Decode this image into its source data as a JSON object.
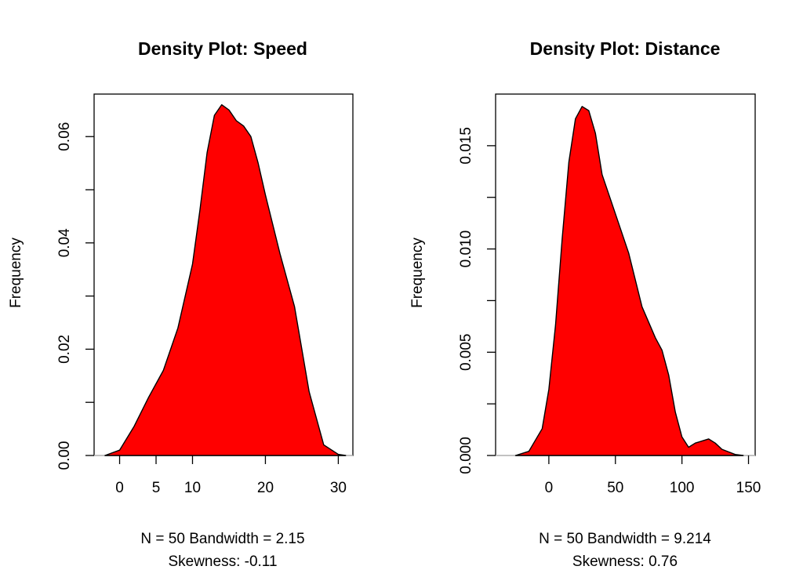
{
  "colors": {
    "fill": "#ff0000",
    "outline": "#000000",
    "background": "#ffffff"
  },
  "chart_data": [
    {
      "type": "area",
      "title": "Density Plot: Speed",
      "xlabel": "",
      "ylabel": "Frequency",
      "subtitle_line1": "N = 50   Bandwidth = 2.15",
      "subtitle_line2": "Skewness: -0.11",
      "xlim": [
        -3.5,
        32
      ],
      "ylim": [
        0,
        0.068
      ],
      "x_ticks": [
        0,
        5,
        10,
        20,
        30
      ],
      "x_tick_labels": [
        "0",
        "5",
        "10",
        "20",
        "30"
      ],
      "y_ticks": [
        0,
        0.01,
        0.02,
        0.03,
        0.04,
        0.05,
        0.06
      ],
      "y_tick_labels": [
        "0.00",
        "",
        "0.02",
        "",
        "0.04",
        "",
        "0.06"
      ],
      "grid": false,
      "legend": "none",
      "series": [
        {
          "x": [
            -2,
            0,
            2,
            4,
            6,
            8,
            10,
            11,
            12,
            13,
            14,
            15,
            16,
            17,
            18,
            19,
            20,
            22,
            24,
            26,
            28,
            30,
            31
          ],
          "values": [
            0,
            0.001,
            0.0055,
            0.011,
            0.016,
            0.024,
            0.036,
            0.046,
            0.057,
            0.064,
            0.066,
            0.065,
            0.063,
            0.062,
            0.06,
            0.055,
            0.049,
            0.038,
            0.028,
            0.012,
            0.002,
            0.0002,
            0
          ]
        }
      ]
    },
    {
      "type": "area",
      "title": "Density Plot: Distance",
      "xlabel": "",
      "ylabel": "Frequency",
      "subtitle_line1": "N = 50   Bandwidth = 9.214",
      "subtitle_line2": "Skewness: 0.76",
      "xlim": [
        -40,
        155
      ],
      "ylim": [
        0,
        0.0175
      ],
      "x_ticks": [
        0,
        50,
        100,
        150
      ],
      "x_tick_labels": [
        "0",
        "50",
        "100",
        "150"
      ],
      "y_ticks": [
        0,
        0.0025,
        0.005,
        0.0075,
        0.01,
        0.0125,
        0.015
      ],
      "y_tick_labels": [
        "0.000",
        "",
        "0.005",
        "",
        "0.010",
        "",
        "0.015"
      ],
      "grid": false,
      "legend": "none",
      "series": [
        {
          "x": [
            -25,
            -15,
            -5,
            0,
            5,
            10,
            15,
            20,
            25,
            30,
            35,
            40,
            50,
            60,
            70,
            80,
            85,
            90,
            95,
            100,
            105,
            110,
            115,
            120,
            125,
            130,
            140,
            146
          ],
          "values": [
            0,
            0.0002,
            0.0013,
            0.0032,
            0.0063,
            0.0105,
            0.0142,
            0.0163,
            0.0169,
            0.0167,
            0.0156,
            0.0136,
            0.0117,
            0.0098,
            0.0072,
            0.0057,
            0.0051,
            0.0039,
            0.0021,
            0.0009,
            0.0004,
            0.0006,
            0.0007,
            0.0008,
            0.0006,
            0.0003,
            5e-05,
            0
          ]
        }
      ]
    }
  ]
}
